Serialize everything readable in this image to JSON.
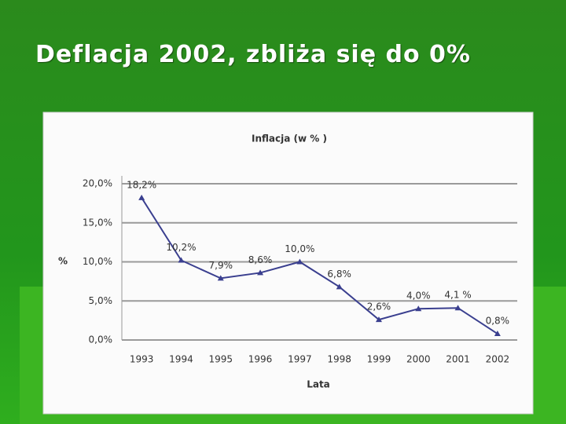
{
  "title": "Deflacja 2002, zbliża się do 0%",
  "chart_data": {
    "type": "line",
    "title": "Inflacja (w % )",
    "y_label": "%",
    "x_label": "Lata",
    "categories": [
      "1993",
      "1994",
      "1995",
      "1996",
      "1997",
      "1998",
      "1999",
      "2000",
      "2001",
      "2002"
    ],
    "series": [
      {
        "name": "Inflacja",
        "color": "#3a3f8f",
        "values": [
          18.2,
          10.2,
          7.9,
          8.6,
          10.0,
          6.8,
          2.6,
          4.0,
          4.1,
          0.8
        ],
        "value_labels": [
          "18,2%",
          "10,2%",
          "7,9%",
          "8,6%",
          "10,0%",
          "6,8%",
          "2,6%",
          "4,0%",
          "4,1 %",
          "0,8%"
        ]
      }
    ],
    "ylim": [
      0,
      20
    ],
    "yticks": [
      {
        "value": 0,
        "label": "0,0%"
      },
      {
        "value": 5,
        "label": "5,0%"
      },
      {
        "value": 10,
        "label": "10,0%"
      },
      {
        "value": 15,
        "label": "15,0%"
      },
      {
        "value": 20,
        "label": "20,0%"
      }
    ],
    "grid": true
  }
}
